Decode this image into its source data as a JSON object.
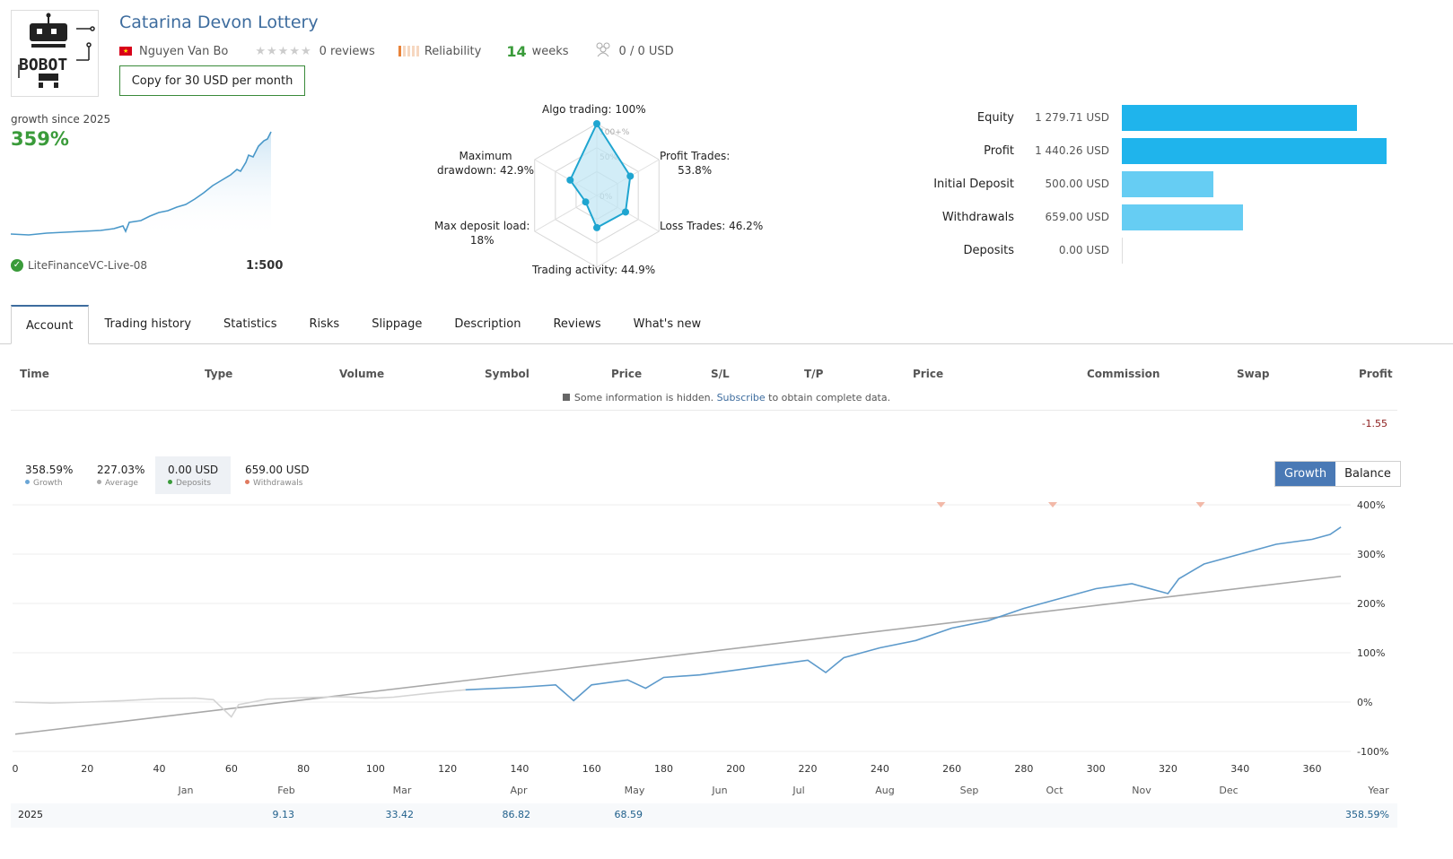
{
  "header": {
    "title": "Catarina Devon Lottery",
    "author": "Nguyen Van Bo",
    "reviews": "0 reviews",
    "reliability": "Reliability",
    "weeks_num": "14",
    "weeks_lbl": "weeks",
    "subscribers": "0 / 0 USD",
    "copy_button": "Copy for 30 USD per month"
  },
  "logo": {
    "text": "BOBOT",
    "icon": "robot-logo"
  },
  "summary": {
    "growth_label": "growth since 2025",
    "growth_value": "359%",
    "broker": "LiteFinanceVC-Live-08",
    "leverage": "1:500"
  },
  "radar": {
    "algo": "Algo trading: 100%",
    "profit_trades": [
      "Profit Trades:",
      "53.8%"
    ],
    "loss_trades": "Loss Trades: 46.2%",
    "activity": "Trading activity: 44.9%",
    "deposit_load": [
      "Max deposit load:",
      "18%"
    ],
    "drawdown": [
      "Maximum",
      "drawdown: 42.9%"
    ],
    "scale": [
      "100+%",
      "50%",
      "0%"
    ],
    "values": {
      "algo": 1.0,
      "profit": 0.538,
      "loss": 0.462,
      "activity": 0.449,
      "load": 0.18,
      "drawdown": 0.429
    }
  },
  "equity": [
    {
      "name": "Equity",
      "value": "1 279.71 USD",
      "amount": 1279.71,
      "color": "#1fb4ec"
    },
    {
      "name": "Profit",
      "value": "1 440.26 USD",
      "amount": 1440.26,
      "color": "#1fb4ec"
    },
    {
      "name": "Initial Deposit",
      "value": "500.00 USD",
      "amount": 500.0,
      "color": "#66cdf3"
    },
    {
      "name": "Withdrawals",
      "value": "659.00 USD",
      "amount": 659.0,
      "color": "#66cdf3"
    },
    {
      "name": "Deposits",
      "value": "0.00 USD",
      "amount": 0.0,
      "color": "#66cdf3"
    }
  ],
  "tabs": [
    "Account",
    "Trading history",
    "Statistics",
    "Risks",
    "Slippage",
    "Description",
    "Reviews",
    "What's new"
  ],
  "table": {
    "headers": [
      "Time",
      "Type",
      "Volume",
      "Symbol",
      "Price",
      "S/L",
      "T/P",
      "Price",
      "Commission",
      "Swap",
      "Profit"
    ],
    "hidden_pre": "Some information is hidden.",
    "hidden_link": "Subscribe",
    "hidden_post": "to obtain complete data.",
    "profit_value": "-1.55"
  },
  "chart_stats": [
    {
      "value": "358.59%",
      "label": "Growth",
      "dot": "#6aa6d6"
    },
    {
      "value": "227.03%",
      "label": "Average",
      "dot": "#aaaaaa"
    },
    {
      "value": "0.00 USD",
      "label": "Deposits",
      "dot": "#3a9b3a"
    },
    {
      "value": "659.00 USD",
      "label": "Withdrawals",
      "dot": "#e07a5f"
    }
  ],
  "toggle": {
    "growth": "Growth",
    "balance": "Balance"
  },
  "chart_data": {
    "type": "line",
    "x_ticks": [
      0,
      20,
      40,
      60,
      80,
      100,
      120,
      140,
      160,
      180,
      200,
      220,
      240,
      260,
      280,
      300,
      320,
      340,
      360
    ],
    "y_ticks": [
      "400%",
      "300%",
      "200%",
      "100%",
      "0%",
      "-100%"
    ],
    "ylim": [
      -100,
      400
    ],
    "xlim": [
      0,
      368
    ],
    "months": [
      "Jan",
      "Feb",
      "Mar",
      "Apr",
      "May",
      "Jun",
      "Jul",
      "Aug",
      "Sep",
      "Oct",
      "Nov",
      "Dec",
      "Year"
    ],
    "series": [
      {
        "values": [
          [
            0,
            0
          ],
          [
            10,
            -2
          ],
          [
            20,
            0
          ],
          [
            30,
            3
          ],
          [
            40,
            7
          ],
          [
            50,
            8
          ],
          [
            55,
            5
          ],
          [
            60,
            -30
          ],
          [
            62,
            -5
          ],
          [
            70,
            6
          ],
          [
            80,
            9
          ],
          [
            90,
            11
          ],
          [
            100,
            8
          ],
          [
            105,
            10
          ],
          [
            115,
            18
          ],
          [
            125,
            25
          ],
          [
            140,
            30
          ],
          [
            150,
            35
          ],
          [
            152,
            22
          ],
          [
            155,
            3
          ],
          [
            160,
            35
          ],
          [
            170,
            45
          ],
          [
            175,
            28
          ],
          [
            180,
            50
          ],
          [
            190,
            55
          ],
          [
            200,
            65
          ],
          [
            210,
            75
          ],
          [
            220,
            85
          ],
          [
            225,
            60
          ],
          [
            230,
            90
          ],
          [
            240,
            110
          ],
          [
            250,
            125
          ],
          [
            260,
            150
          ],
          [
            270,
            165
          ],
          [
            280,
            190
          ],
          [
            290,
            210
          ],
          [
            300,
            230
          ],
          [
            310,
            240
          ],
          [
            320,
            220
          ],
          [
            323,
            250
          ],
          [
            330,
            280
          ],
          [
            340,
            300
          ],
          [
            350,
            320
          ],
          [
            360,
            330
          ],
          [
            365,
            340
          ],
          [
            368,
            355
          ]
        ]
      },
      {
        "values": [
          [
            0,
            -65
          ],
          [
            368,
            255
          ]
        ]
      }
    ],
    "withdrawal_markers": [
      257,
      288,
      329
    ]
  },
  "year_row": {
    "year": "2025",
    "values": [
      "9.13",
      "33.42",
      "86.82",
      "68.59"
    ],
    "total": "358.59%"
  }
}
